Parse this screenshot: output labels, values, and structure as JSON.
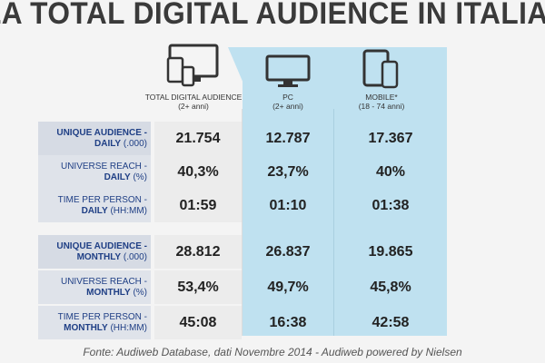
{
  "title": "LA TOTAL DIGITAL AUDIENCE IN ITALIA",
  "columns": [
    {
      "label": "TOTAL DIGITAL AUDIENCE",
      "sub": "(2+ anni)",
      "icon": "devices-icon"
    },
    {
      "label": "PC",
      "sub": "(2+ anni)",
      "icon": "monitor-icon"
    },
    {
      "label": "MOBILE*",
      "sub": "(18 - 74 anni)",
      "icon": "tablet-phone-icon"
    }
  ],
  "rows": [
    {
      "label1": "UNIQUE AUDIENCE -",
      "label2": "DAILY",
      "unit": "(.000)",
      "total": "21.754",
      "pc": "12.787",
      "mobile": "17.367"
    },
    {
      "label1": "UNIVERSE REACH -",
      "label2": "DAILY",
      "unit": "(%)",
      "total": "40,3%",
      "pc": "23,7%",
      "mobile": "40%"
    },
    {
      "label1": "TIME PER PERSON -",
      "label2": "DAILY",
      "unit": "(HH:MM)",
      "total": "01:59",
      "pc": "01:10",
      "mobile": "01:38"
    },
    {
      "label1": "UNIQUE AUDIENCE -",
      "label2": "MONTHLY",
      "unit": "(.000)",
      "total": "28.812",
      "pc": "26.837",
      "mobile": "19.865"
    },
    {
      "label1": "UNIVERSE REACH -",
      "label2": "MONTHLY",
      "unit": "(%)",
      "total": "53,4%",
      "pc": "49,7%",
      "mobile": "45,8%"
    },
    {
      "label1": "TIME PER PERSON -",
      "label2": "MONTHLY",
      "unit": "(HH:MM)",
      "total": "45:08",
      "pc": "16:38",
      "mobile": "42:58"
    }
  ],
  "source": "Fonte: Audiweb Database, dati Novembre 2014 - Audiweb powered by Nielsen",
  "colors": {
    "accent_panel": "#bfe1f0",
    "label_text": "#1f3f85"
  }
}
